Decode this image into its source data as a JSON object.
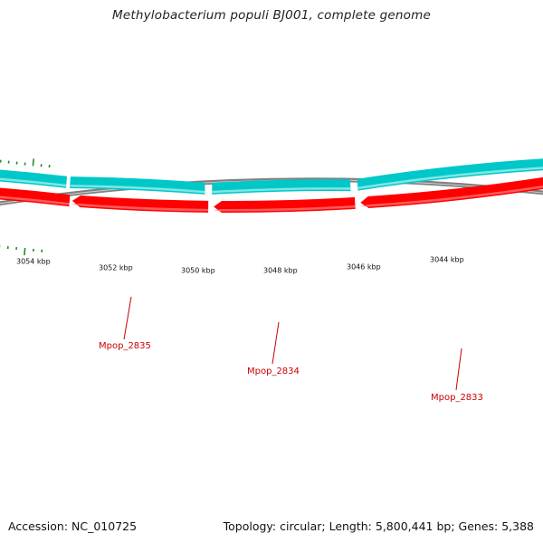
{
  "title": "Methylobacterium populi BJ001, complete genome",
  "accession": "Accession: NC_010725",
  "summary": "Topology: circular; Length: 5,800,441 bp; Genes: 5,388",
  "colors": {
    "backbone": "#808080",
    "forward_strand": "#ff0000",
    "reverse_strand": "#00c8c8",
    "ticks": "#228b22",
    "gene_label": "#cc0000"
  },
  "scale_labels": [
    "3054 kbp",
    "3052 kbp",
    "3050 kbp",
    "3048 kbp",
    "3046 kbp",
    "3044 kbp"
  ],
  "genes": [
    {
      "name": "Mpop_2835"
    },
    {
      "name": "Mpop_2834"
    },
    {
      "name": "Mpop_2833"
    }
  ]
}
